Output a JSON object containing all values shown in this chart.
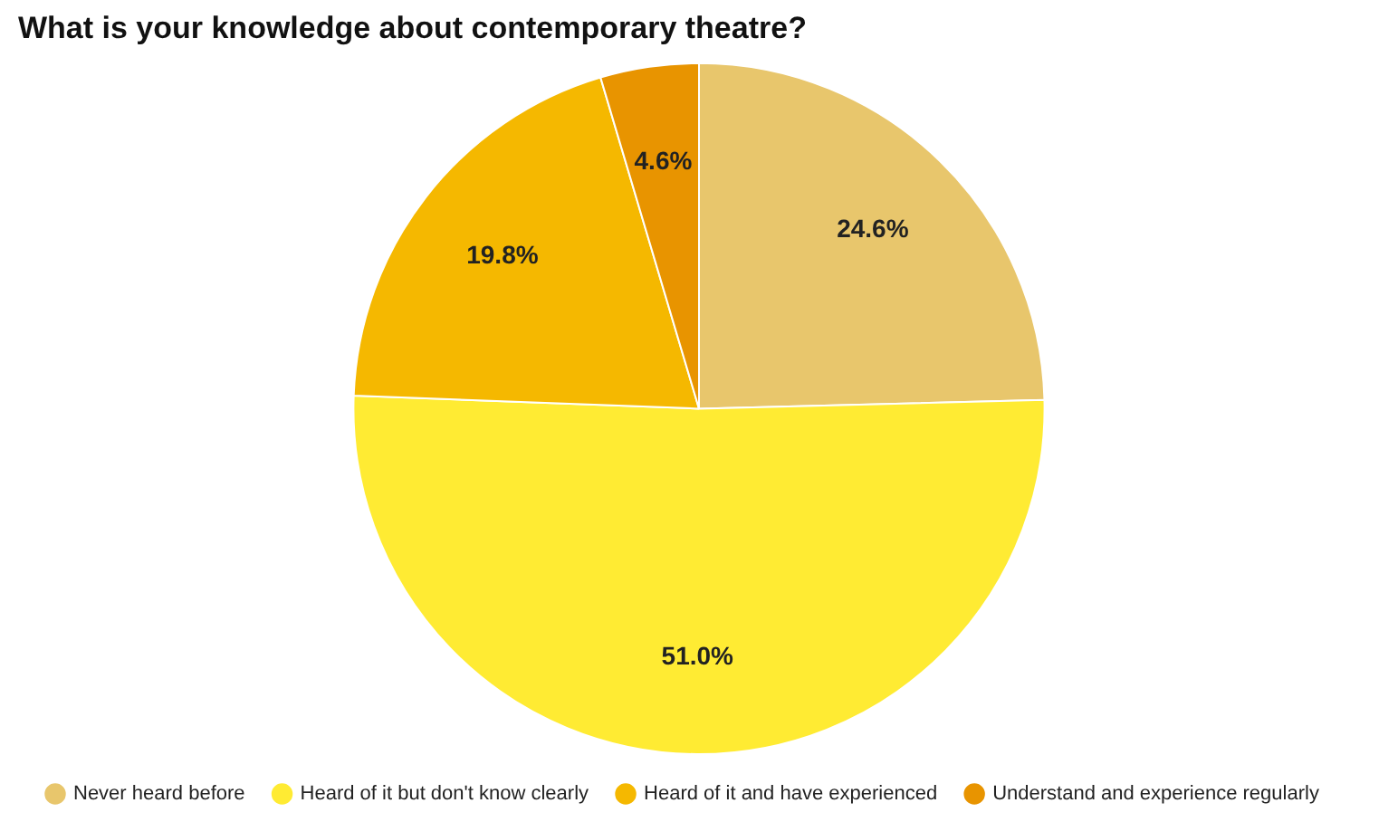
{
  "chart_data": {
    "type": "pie",
    "title": "What is your knowledge about contemporary theatre?",
    "categories": [
      "Never heard before",
      "Heard of it but don't know clearly",
      "Heard of it and have experienced",
      "Understand and experience regularly"
    ],
    "values": [
      24.6,
      51.0,
      19.8,
      4.6
    ],
    "value_labels": [
      "24.6%",
      "51.0%",
      "19.8%",
      "4.6%"
    ],
    "colors": [
      "#e8c66c",
      "#ffeb33",
      "#f5b800",
      "#e89400"
    ],
    "legend": "bottom"
  }
}
